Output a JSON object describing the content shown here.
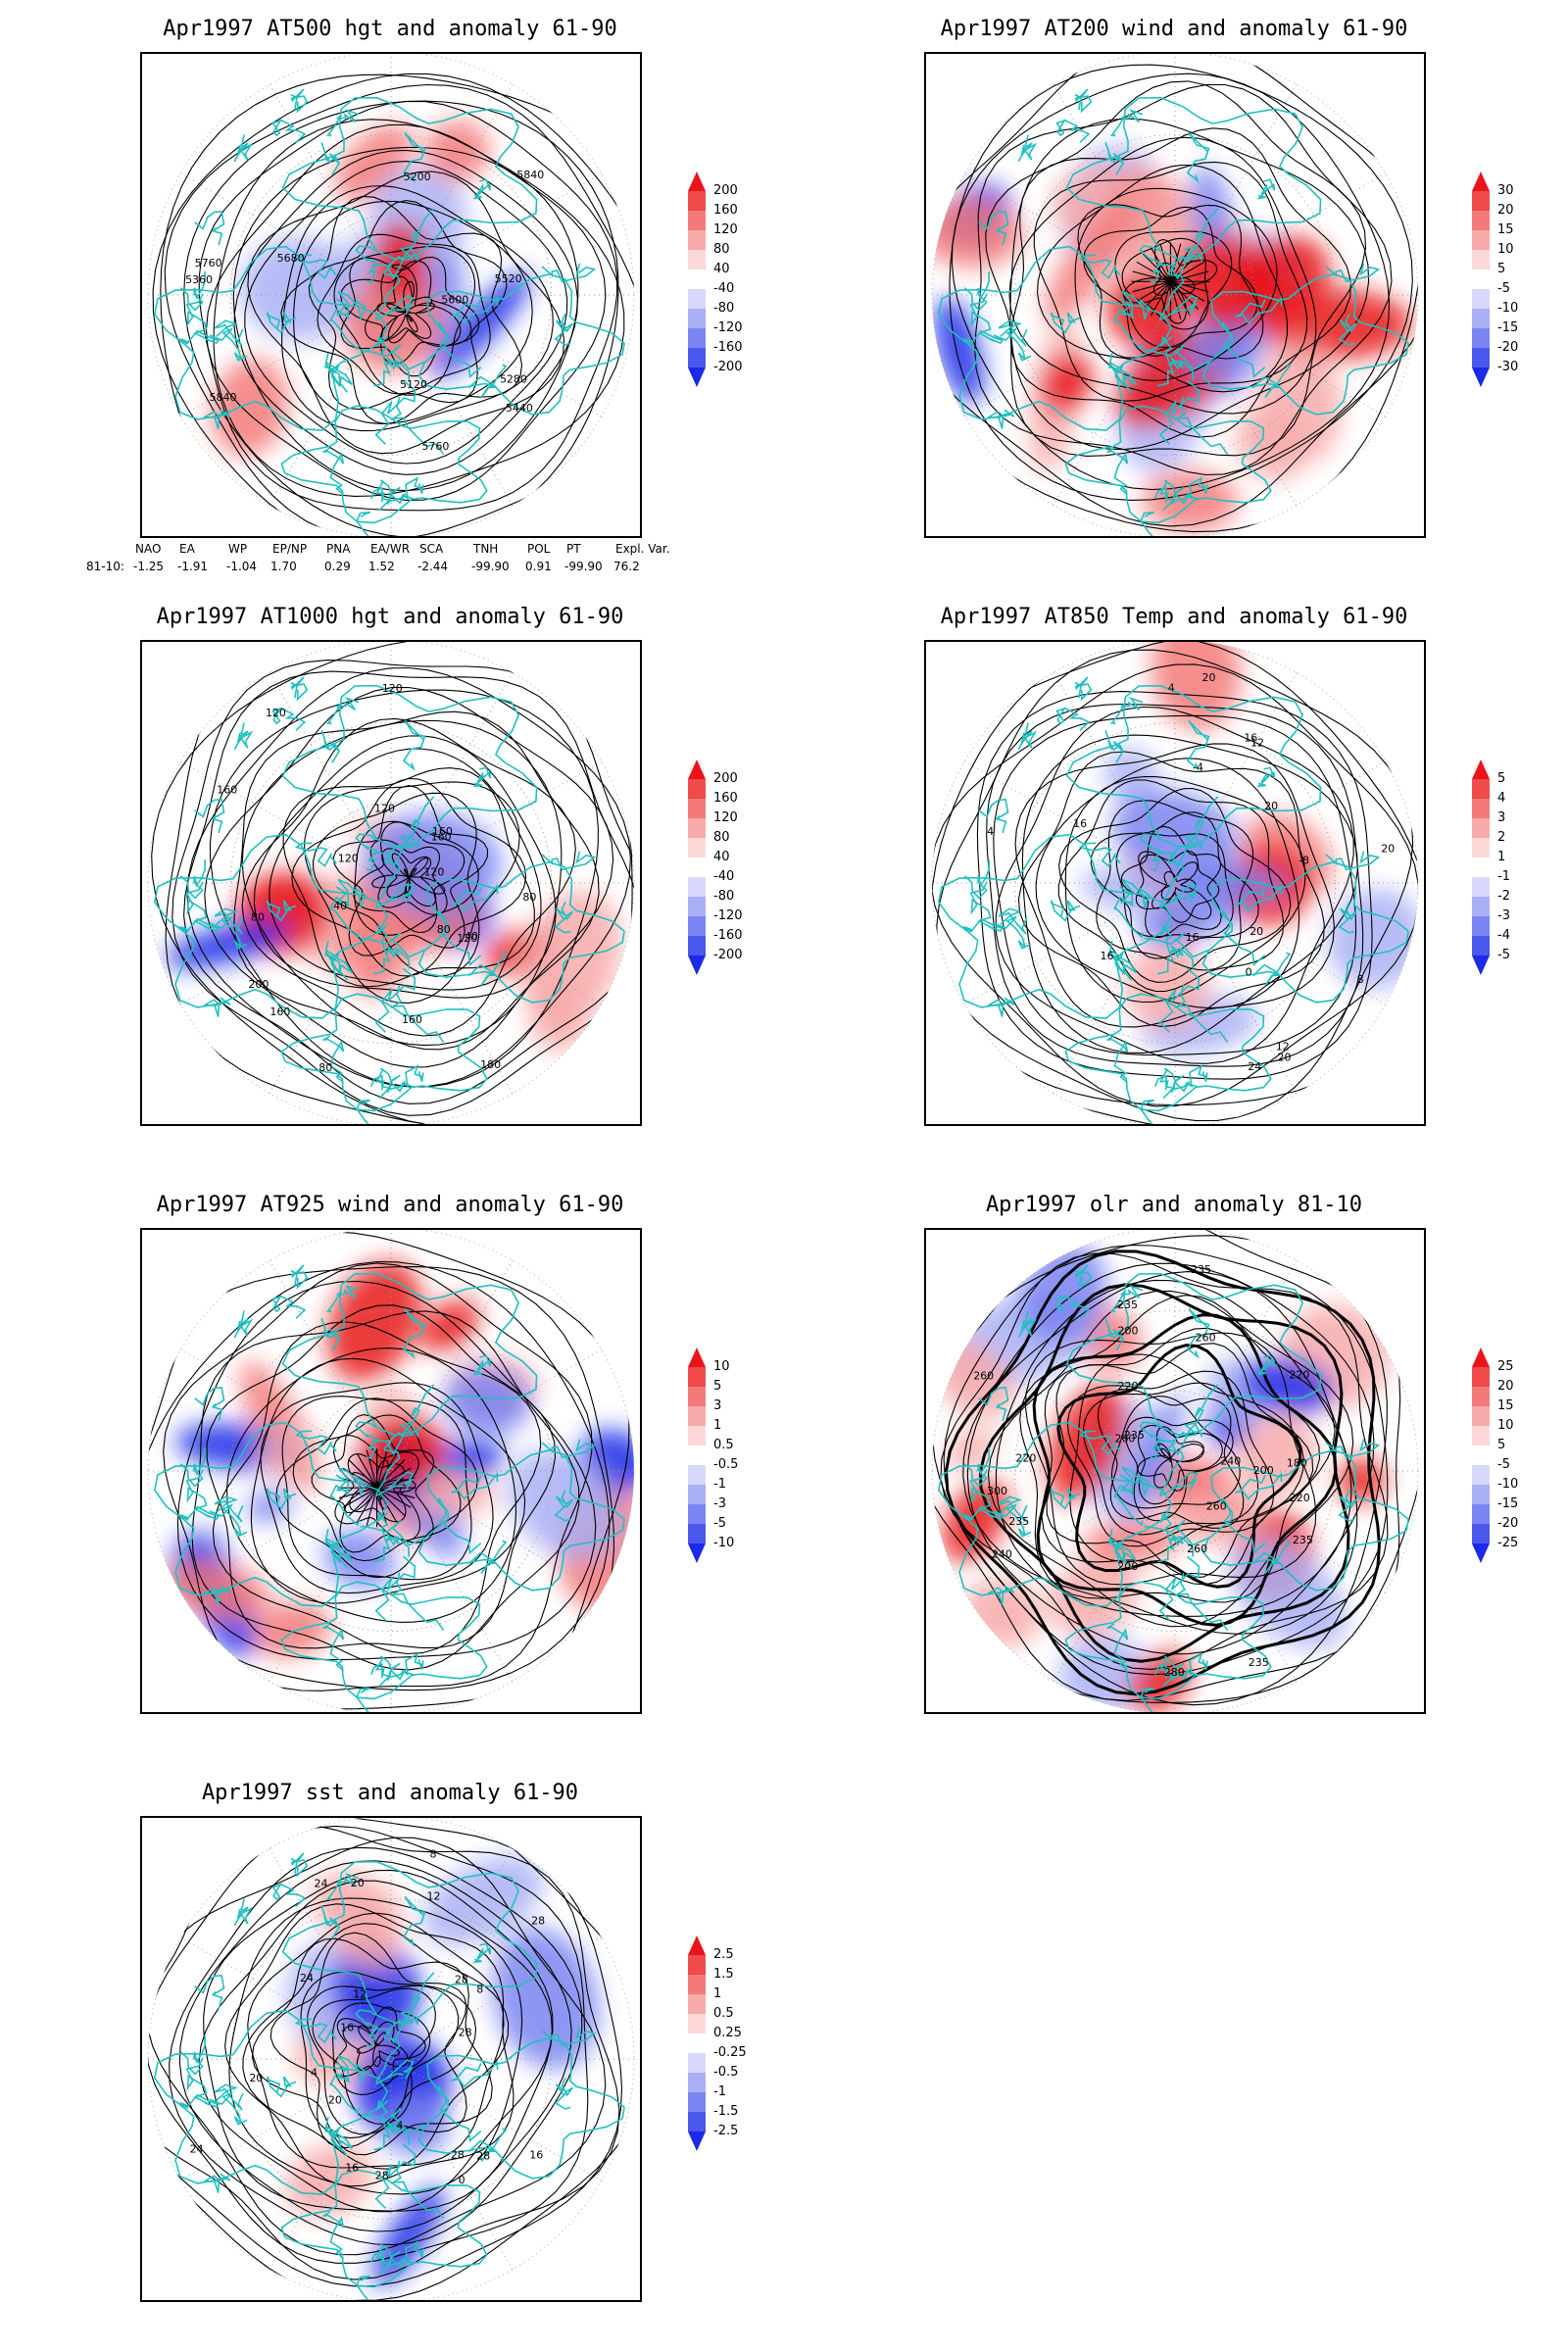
{
  "panels": [
    {
      "id": "at500",
      "title": "Apr1997 AT500 hgt and anomaly 61-90",
      "type": "contour",
      "contour_labels": [
        "5840",
        "5760",
        "5680",
        "5600",
        "5520",
        "5440",
        "5360",
        "5280",
        "5200",
        "5120",
        "5760",
        "5840"
      ],
      "colorbar": [
        "200",
        "160",
        "120",
        "80",
        "40",
        "-40",
        "-80",
        "-120",
        "-160",
        "-200"
      ]
    },
    {
      "id": "at200",
      "title": "Apr1997 AT200 wind and anomaly 61-90",
      "type": "streamline",
      "contour_labels": [],
      "colorbar": [
        "30",
        "20",
        "15",
        "10",
        "5",
        "-5",
        "-10",
        "-15",
        "-20",
        "-30"
      ]
    },
    {
      "id": "at1000",
      "title": "Apr1997 AT1000 hgt and anomaly 61-90",
      "type": "contour",
      "contour_labels": [
        "160",
        "200",
        "120",
        "180",
        "40",
        "80",
        "120",
        "160",
        "160",
        "40",
        "80",
        "120",
        "160",
        "80",
        "120",
        "120",
        "160",
        "80",
        "120"
      ],
      "colorbar": [
        "200",
        "160",
        "120",
        "80",
        "40",
        "-40",
        "-80",
        "-120",
        "-160",
        "-200"
      ]
    },
    {
      "id": "at850",
      "title": "Apr1997 AT850 Temp and anomaly 61-90",
      "type": "contour",
      "contour_labels": [
        "12",
        "16",
        "16",
        "4",
        "0",
        "20",
        "16",
        "-4",
        "-8",
        "4",
        "8",
        "12",
        "20",
        "16",
        "20",
        "24",
        "20",
        "20"
      ],
      "colorbar": [
        "5",
        "4",
        "3",
        "2",
        "1",
        "-1",
        "-2",
        "-3",
        "-4",
        "-5"
      ]
    },
    {
      "id": "at925",
      "title": "Apr1997 AT925 wind and anomaly 61-90",
      "type": "streamline",
      "contour_labels": [],
      "colorbar": [
        "10",
        "5",
        "3",
        "1",
        "0.5",
        "-0.5",
        "-1",
        "-3",
        "-5",
        "-10"
      ]
    },
    {
      "id": "olr",
      "title": "Apr1997 olr and anomaly 81-10",
      "type": "contour",
      "contour_labels": [
        "260",
        "200",
        "235",
        "220",
        "260",
        "235",
        "220",
        "260",
        "235",
        "240",
        "180",
        "200",
        "220",
        "235",
        "260",
        "280",
        "300",
        "235",
        "240",
        "260",
        "200",
        "220",
        "235"
      ],
      "colorbar": [
        "25",
        "20",
        "15",
        "10",
        "5",
        "-5",
        "-10",
        "-15",
        "-20",
        "-25"
      ]
    },
    {
      "id": "sst",
      "title": "Apr1997 sst and anomaly 61-90",
      "type": "contour",
      "contour_labels": [
        "28",
        "28",
        "24",
        "20",
        "16",
        "12",
        "8",
        "4",
        "0",
        "28",
        "28",
        "24",
        "20",
        "16",
        "12",
        "8",
        "4",
        "16",
        "20",
        "24",
        "28",
        "28"
      ],
      "colorbar": [
        "2.5",
        "1.5",
        "1",
        "0.5",
        "0.25",
        "-0.25",
        "-0.5",
        "-1",
        "-1.5",
        "-2.5"
      ]
    }
  ],
  "indices": {
    "headers": [
      "NAO",
      "EA",
      "WP",
      "EP/NP",
      "PNA",
      "EA/WR",
      "SCA",
      "TNH",
      "POL",
      "PT",
      "Expl. Var."
    ],
    "row_label": "81-10:",
    "values": [
      "-1.25",
      "-1.91",
      "-1.04",
      "1.70",
      "0.29",
      "1.52",
      "-2.44",
      "-99.90",
      "0.91",
      "-99.90",
      "76.2"
    ]
  },
  "colors": {
    "positive_strong": "#e8141a",
    "negative_strong": "#1a2ae8",
    "coastline": "#20c0c0",
    "contour": "#000000"
  }
}
